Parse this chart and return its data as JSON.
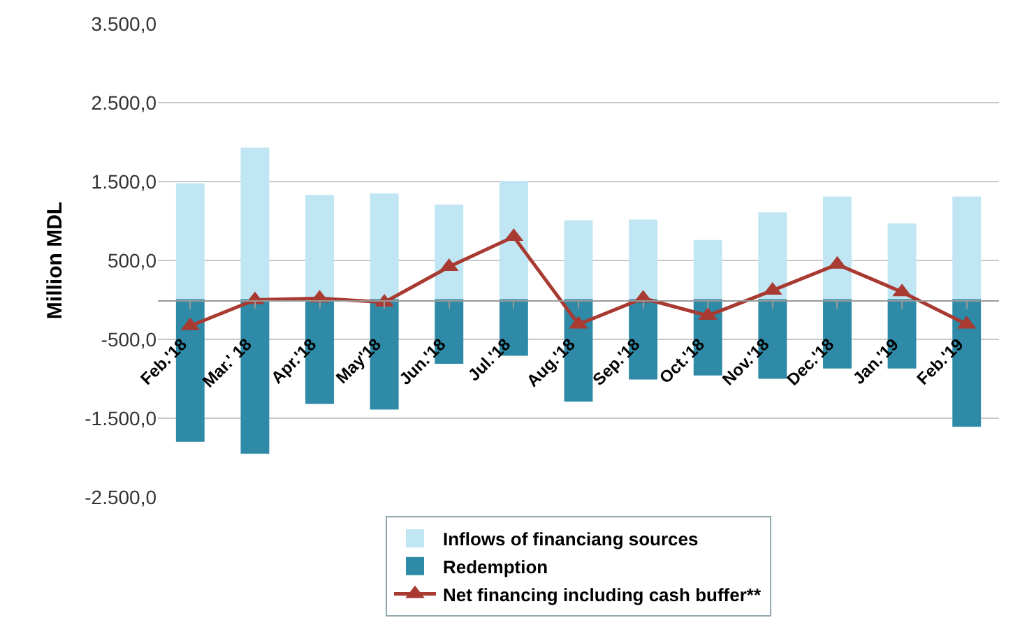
{
  "chart_data": {
    "type": "bar",
    "ylabel": "Million MDL",
    "stacked": true,
    "categories": [
      "Feb.'18",
      "Mar.' 18",
      "Apr.'18",
      "May'18",
      "Jun.'18",
      "Jul.'18",
      "Aug.'18",
      "Sep.'18",
      "Oct.'18",
      "Nov.'18",
      "Dec.'18",
      "Jan.'19",
      "Feb.'19"
    ],
    "series": [
      {
        "name": "Inflows of financiang sources",
        "color": "#bfe6f2",
        "values": [
          1470,
          1920,
          1320,
          1340,
          1200,
          1500,
          1000,
          1010,
          750,
          1100,
          1300,
          960,
          1300
        ]
      },
      {
        "name": "Redemption",
        "color": "#2e8aa6",
        "values": [
          -1790,
          -1940,
          -1310,
          -1380,
          -800,
          -700,
          -1280,
          -1000,
          -950,
          -990,
          -860,
          -860,
          -1600
        ]
      },
      {
        "name": "Net financing including cash buffer**",
        "type": "line",
        "color": "#a93a32",
        "marker": "triangle",
        "values": [
          -330,
          0,
          20,
          -30,
          420,
          800,
          -310,
          20,
          -200,
          120,
          450,
          100,
          -310
        ]
      }
    ],
    "ylim": [
      -2500,
      3500
    ],
    "yticks": [
      {
        "value": -2500,
        "label": "-2.500,0"
      },
      {
        "value": -1500,
        "label": "-1.500,0"
      },
      {
        "value": -500,
        "label": "-500,0"
      },
      {
        "value": 500,
        "label": "500,0"
      },
      {
        "value": 1500,
        "label": "1.500,0"
      },
      {
        "value": 2500,
        "label": "2.500,0"
      },
      {
        "value": 3500,
        "label": "3.500,0"
      }
    ],
    "grid": "y",
    "legend": "bottom"
  }
}
